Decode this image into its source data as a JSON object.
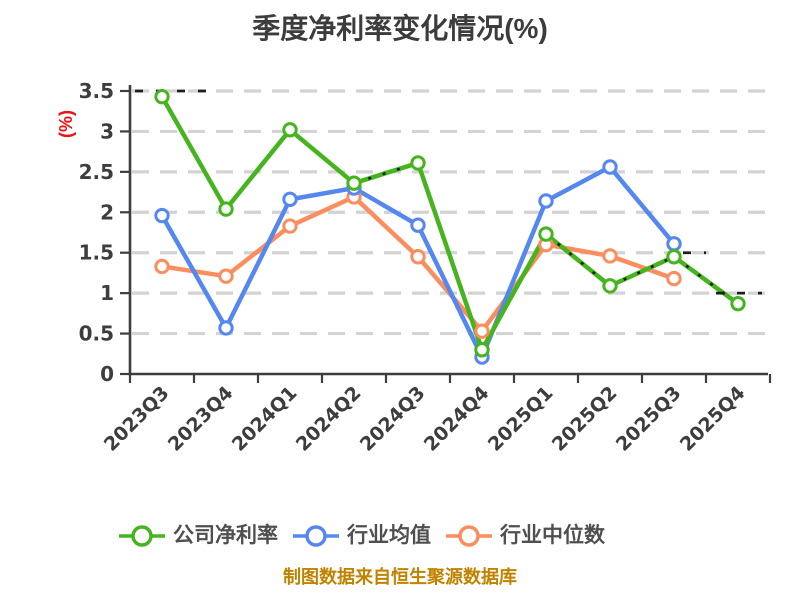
{
  "title": "季度净利率变化情况(%)",
  "y_axis_label": "(%)",
  "footer": "制图数据来自恒生聚源数据库",
  "chart_data": {
    "type": "line",
    "title": "季度净利率变化情况(%)",
    "ylabel": "(%)",
    "categories": [
      "2023Q3",
      "2023Q4",
      "2024Q1",
      "2024Q2",
      "2024Q3",
      "2024Q4",
      "2025Q1",
      "2025Q2",
      "2025Q3",
      "2025Q4"
    ],
    "series": [
      {
        "name": "公司净利率",
        "color": "#46b41e",
        "marker": "circle",
        "values": [
          3.43,
          2.04,
          3.02,
          2.36,
          2.61,
          0.3,
          1.73,
          1.09,
          1.45,
          0.87
        ]
      },
      {
        "name": "行业均值",
        "color": "#5587f0",
        "marker": "circle",
        "values": [
          1.96,
          0.57,
          2.16,
          2.3,
          1.84,
          0.21,
          2.14,
          2.56,
          1.61,
          null
        ]
      },
      {
        "name": "行业中位数",
        "color": "#fa8e5e",
        "marker": "circle",
        "values": [
          1.33,
          1.21,
          1.83,
          2.19,
          1.45,
          0.53,
          1.6,
          1.46,
          1.18,
          null
        ]
      }
    ],
    "y_ticks": [
      0,
      0.5,
      1,
      1.5,
      2,
      2.5,
      3,
      3.5
    ],
    "y_tick_labels": [
      "0",
      "0.5",
      "1",
      "1.5",
      "2",
      "2.5",
      "3",
      "3.5"
    ],
    "ylim": [
      0,
      3.5
    ],
    "grid": "horizontal-dashed",
    "legend_position": "bottom",
    "background_color": "#ffffff",
    "gridline_color": "#d3d3d3",
    "axis_color": "#3d3d3d",
    "title_color": "#3c3c3c",
    "ylabel_color": "#ee1111",
    "footer_color": "#bf8300"
  }
}
